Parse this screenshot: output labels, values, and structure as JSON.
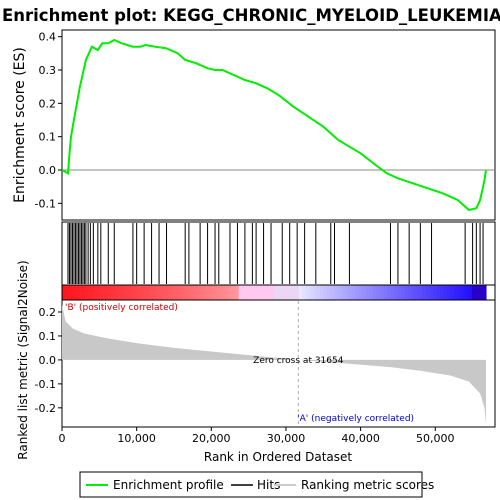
{
  "chart_data": {
    "type": "line",
    "title": "Enrichment plot: KEGG_CHRONIC_MYELOID_LEUKEMIA",
    "enrichment_panel": {
      "ylabel": "Enrichment score (ES)",
      "ylim": [
        -0.15,
        0.42
      ],
      "yticks": [
        -0.1,
        0.0,
        0.1,
        0.2,
        0.3,
        0.4
      ],
      "series_color": "#00ee00",
      "points": [
        [
          0,
          0.0
        ],
        [
          800,
          -0.01
        ],
        [
          1000,
          0.05
        ],
        [
          1200,
          0.1
        ],
        [
          1600,
          0.15
        ],
        [
          2000,
          0.2
        ],
        [
          2400,
          0.25
        ],
        [
          2800,
          0.29
        ],
        [
          3200,
          0.33
        ],
        [
          3600,
          0.35
        ],
        [
          4000,
          0.37
        ],
        [
          4800,
          0.36
        ],
        [
          5400,
          0.38
        ],
        [
          6200,
          0.38
        ],
        [
          7000,
          0.39
        ],
        [
          8000,
          0.38
        ],
        [
          9500,
          0.37
        ],
        [
          10500,
          0.37
        ],
        [
          11200,
          0.375
        ],
        [
          12500,
          0.37
        ],
        [
          14000,
          0.365
        ],
        [
          15500,
          0.35
        ],
        [
          16500,
          0.33
        ],
        [
          18000,
          0.32
        ],
        [
          19500,
          0.305
        ],
        [
          20500,
          0.3
        ],
        [
          21500,
          0.3
        ],
        [
          23000,
          0.285
        ],
        [
          24500,
          0.27
        ],
        [
          26000,
          0.26
        ],
        [
          27500,
          0.245
        ],
        [
          29000,
          0.225
        ],
        [
          31000,
          0.19
        ],
        [
          33000,
          0.16
        ],
        [
          35000,
          0.13
        ],
        [
          37000,
          0.09
        ],
        [
          38500,
          0.07
        ],
        [
          40000,
          0.05
        ],
        [
          42000,
          0.015
        ],
        [
          43500,
          -0.01
        ],
        [
          45000,
          -0.025
        ],
        [
          47000,
          -0.04
        ],
        [
          49000,
          -0.055
        ],
        [
          51000,
          -0.07
        ],
        [
          53000,
          -0.09
        ],
        [
          54500,
          -0.12
        ],
        [
          55500,
          -0.115
        ],
        [
          56000,
          -0.09
        ],
        [
          56400,
          -0.05
        ],
        [
          56600,
          -0.03
        ],
        [
          56800,
          0.0
        ]
      ]
    },
    "hits_panel": {
      "hit_ranks": [
        800,
        1000,
        1200,
        1400,
        1600,
        1800,
        2000,
        2200,
        2400,
        2600,
        2800,
        3000,
        3200,
        3500,
        3800,
        4200,
        4800,
        5200,
        6200,
        7000,
        9500,
        10000,
        11000,
        12000,
        13000,
        14000,
        16500,
        17000,
        18500,
        19500,
        20500,
        21000,
        22500,
        23500,
        24500,
        25500,
        26000,
        27000,
        28000,
        29500,
        30500,
        31500,
        32500,
        34000,
        36000,
        36500,
        38500,
        44000,
        45000,
        46500,
        48000,
        49500,
        54000,
        55000,
        55500,
        56000,
        56400
      ]
    },
    "ranking_panel": {
      "ylabel": "Ranked list metric (Signal2Noise)",
      "ylim": [
        -0.28,
        0.25
      ],
      "yticks": [
        -0.2,
        -0.1,
        0.0,
        0.1,
        0.2
      ],
      "points": [
        [
          0,
          0.23
        ],
        [
          500,
          0.16
        ],
        [
          1500,
          0.13
        ],
        [
          3000,
          0.11
        ],
        [
          6000,
          0.09
        ],
        [
          10000,
          0.07
        ],
        [
          15000,
          0.05
        ],
        [
          20000,
          0.035
        ],
        [
          25000,
          0.02
        ],
        [
          31654,
          0.0
        ],
        [
          38000,
          -0.015
        ],
        [
          44000,
          -0.03
        ],
        [
          48000,
          -0.045
        ],
        [
          52000,
          -0.065
        ],
        [
          54500,
          -0.09
        ],
        [
          56000,
          -0.14
        ],
        [
          56600,
          -0.2
        ],
        [
          56800,
          -0.27
        ]
      ],
      "zero_cross_label": "Zero cross at 31654",
      "zero_cross_rank": 31654,
      "pos_label": "'B' (positively correlated)",
      "neg_label": "'A' (negatively correlated)"
    },
    "xlabel": "Rank in Ordered Dataset",
    "xlim": [
      0,
      58000
    ],
    "xticks": [
      0,
      10000,
      20000,
      30000,
      40000,
      50000
    ],
    "legend": {
      "placement": "bottom",
      "entries": [
        {
          "label": "Enrichment profile",
          "color": "#00ee00"
        },
        {
          "label": "Hits",
          "color": "#000000"
        },
        {
          "label": "Ranking metric scores",
          "color": "#cccccc"
        }
      ]
    }
  }
}
